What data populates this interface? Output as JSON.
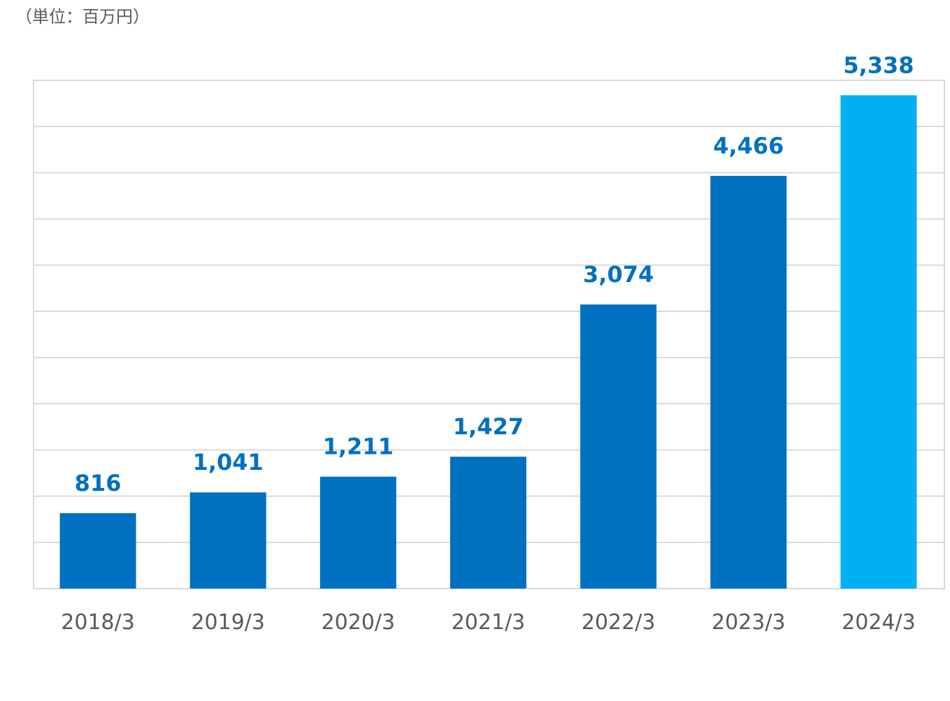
{
  "unit_label": "（単位：百万円）",
  "colors": {
    "bar": "#0070C0",
    "bar_highlight": "#00B0F0",
    "label": "#0070C0",
    "grid": "#D9D9D9",
    "tick": "#595959"
  },
  "chart_data": {
    "type": "bar",
    "categories": [
      "2018/3",
      "2019/3",
      "2020/3",
      "2021/3",
      "2022/3",
      "2023/3",
      "2024/3"
    ],
    "values": [
      816,
      1041,
      1211,
      1427,
      3074,
      4466,
      5338
    ],
    "value_labels": [
      "816",
      "1,041",
      "1,211",
      "1,427",
      "3,074",
      "4,466",
      "5,338"
    ],
    "highlight_index": 6,
    "ylim": [
      0,
      5500
    ],
    "grid": true,
    "title": "",
    "xlabel": "",
    "ylabel": ""
  }
}
